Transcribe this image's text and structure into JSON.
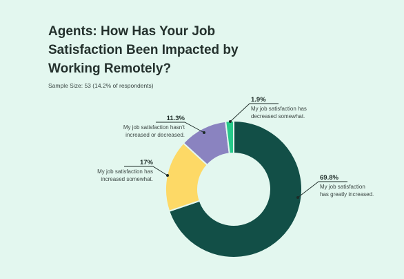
{
  "title": "Agents: How Has Your Job Satisfaction Been Impacted by Working Remotely?",
  "subtitle": "Sample Size: 53 (14.2% of respondents)",
  "colors": {
    "background": "#e3f7ef",
    "greatly_increased": "#124f47",
    "increased_somewhat": "#fdd966",
    "unchanged": "#8a83c0",
    "decreased_somewhat": "#27c98a"
  },
  "chart_data": {
    "type": "pie",
    "style": "donut",
    "categories": [
      "My job satisfaction has greatly increased.",
      "My job satisfaction has increased somewhat.",
      "My job satisfaction hasn't increased or decreased.",
      "My job satisfaction has decreased somewhat."
    ],
    "values": [
      69.8,
      17,
      11.3,
      1.9
    ],
    "labels": [
      {
        "pct": "69.8%",
        "lines": [
          "My job satisfaction",
          "has greatly increased."
        ]
      },
      {
        "pct": "17%",
        "lines": [
          "My job satisfaction has",
          "increased somewhat."
        ]
      },
      {
        "pct": "11.3%",
        "lines": [
          "My job satisfaction hasn't",
          "increased or decreased."
        ]
      },
      {
        "pct": "1.9%",
        "lines": [
          "My job satisfaction has",
          "decreased somewhat."
        ]
      }
    ]
  }
}
